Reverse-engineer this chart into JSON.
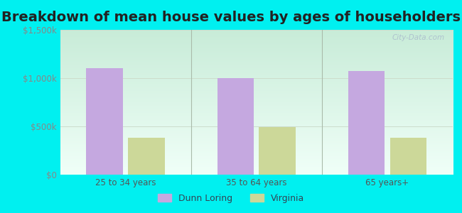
{
  "title": "Breakdown of mean house values by ages of householders",
  "categories": [
    "25 to 34 years",
    "35 to 64 years",
    "65 years+"
  ],
  "series": {
    "Dunn Loring": [
      1100000,
      1000000,
      1075000
    ],
    "Virginia": [
      380000,
      490000,
      385000
    ]
  },
  "bar_colors": {
    "Dunn Loring": "#c5a8e0",
    "Virginia": "#ccd899"
  },
  "ylim": [
    0,
    1500000
  ],
  "yticks": [
    0,
    500000,
    1000000,
    1500000
  ],
  "ytick_labels": [
    "$0",
    "$500k",
    "$1,000k",
    "$1,500k"
  ],
  "background_color": "#00f0f0",
  "bg_gradient_top": "#c8ecd8",
  "bg_gradient_bottom": "#f0fff8",
  "title_fontsize": 14,
  "tick_fontsize": 8.5,
  "legend_fontsize": 9,
  "watermark": "City-Data.com",
  "bar_width": 0.28,
  "bar_gap": 0.04
}
